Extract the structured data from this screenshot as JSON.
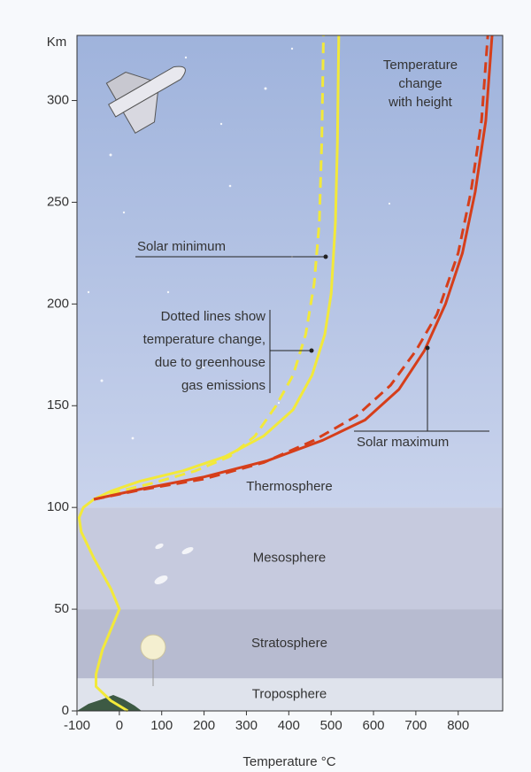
{
  "chart_data": {
    "type": "line",
    "title": [
      "Temperature",
      "change",
      "with height"
    ],
    "x_label": "Temperature °C",
    "y_label": "Km",
    "xlim": [
      -100,
      905
    ],
    "ylim": [
      0,
      332
    ],
    "xticks": [
      -100,
      0,
      100,
      200,
      300,
      400,
      500,
      600,
      700,
      800
    ],
    "yticks": [
      0,
      50,
      100,
      150,
      200,
      250,
      300
    ],
    "layers": [
      {
        "name": "Troposphere",
        "bottom": 0,
        "top": 16,
        "color": "#dfe3ec"
      },
      {
        "name": "Stratosphere",
        "bottom": 16,
        "top": 50,
        "color": "#b7bbd0"
      },
      {
        "name": "Mesosphere",
        "bottom": 50,
        "top": 100,
        "color": "#c6cade"
      },
      {
        "name": "Thermosphere",
        "bottom": 100,
        "top": 332,
        "color": "#b7c6e6"
      }
    ],
    "series": [
      {
        "name": "Solar minimum",
        "color": "#f2e93a",
        "dashed": false,
        "x": [
          20,
          -20,
          -55,
          -55,
          -40,
          -10,
          0,
          -20,
          -60,
          -90,
          -95,
          -85,
          -60,
          -20,
          50,
          150,
          250,
          340,
          410,
          455,
          485,
          500,
          510,
          515,
          518
        ],
        "values": [
          0,
          5,
          12,
          18,
          30,
          45,
          50,
          60,
          75,
          88,
          95,
          100,
          104,
          108,
          113,
          118,
          125,
          135,
          148,
          165,
          185,
          205,
          240,
          280,
          332
        ]
      },
      {
        "color": "#f2e93a",
        "dashed": true,
        "x": [
          -60,
          0,
          80,
          180,
          260,
          320,
          370,
          410,
          440,
          460,
          472,
          478,
          482
        ],
        "values": [
          104,
          108,
          112,
          118,
          125,
          135,
          150,
          165,
          185,
          210,
          240,
          280,
          332
        ]
      },
      {
        "name": "Solar maximum",
        "color": "#d63e1a",
        "dashed": false,
        "x": [
          -60,
          50,
          200,
          350,
          480,
          580,
          660,
          720,
          770,
          810,
          840,
          865,
          880
        ],
        "values": [
          104,
          109,
          115,
          123,
          133,
          143,
          158,
          177,
          200,
          225,
          255,
          290,
          332
        ]
      },
      {
        "color": "#d63e1a",
        "dashed": true,
        "x": [
          -60,
          60,
          200,
          340,
          460,
          560,
          640,
          700,
          750,
          800,
          830,
          855,
          870
        ],
        "values": [
          104,
          109,
          114,
          122,
          133,
          145,
          160,
          177,
          195,
          225,
          255,
          290,
          332
        ]
      }
    ],
    "note": [
      "Dotted lines show",
      "temperature change,",
      "due to greenhouse",
      "gas emissions"
    ]
  }
}
